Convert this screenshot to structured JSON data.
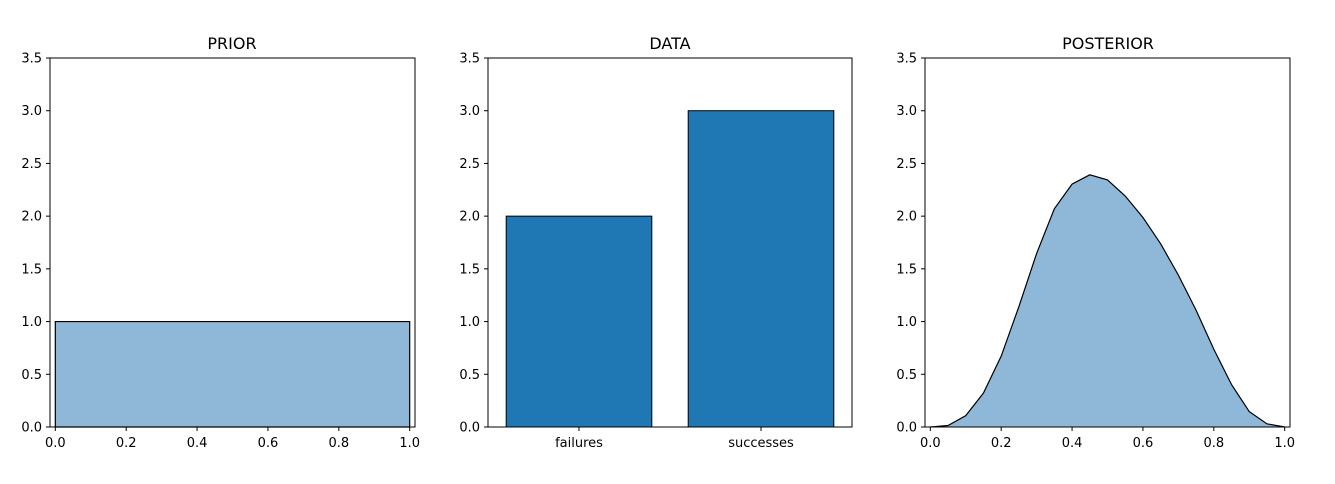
{
  "chart_data": [
    {
      "type": "area",
      "title": "PRIOR",
      "xlim": [
        -0.015,
        1.015
      ],
      "ylim": [
        0,
        3.5
      ],
      "xticks": [
        "0.0",
        "0.2",
        "0.4",
        "0.6",
        "0.8",
        "1.0"
      ],
      "yticks": [
        "0.0",
        "0.5",
        "1.0",
        "1.5",
        "2.0",
        "2.5",
        "3.0",
        "3.5"
      ],
      "x": [
        0,
        1
      ],
      "y": [
        1,
        1
      ],
      "fill_color": "#8fb8d8",
      "edge_color": "#000000",
      "grid": false
    },
    {
      "type": "bar",
      "title": "DATA",
      "categories": [
        "failures",
        "successes"
      ],
      "values": [
        2,
        3
      ],
      "ylim": [
        0,
        3.5
      ],
      "yticks": [
        "0.0",
        "0.5",
        "1.0",
        "1.5",
        "2.0",
        "2.5",
        "3.0",
        "3.5"
      ],
      "bar_color": "#1f77b4",
      "edge_color": "#000000",
      "grid": false
    },
    {
      "type": "area",
      "title": "POSTERIOR",
      "xlim": [
        -0.015,
        1.015
      ],
      "ylim": [
        0,
        3.5
      ],
      "xticks": [
        "0.0",
        "0.2",
        "0.4",
        "0.6",
        "0.8",
        "1.0"
      ],
      "yticks": [
        "0.0",
        "0.5",
        "1.0",
        "1.5",
        "2.0",
        "2.5",
        "3.0",
        "3.5"
      ],
      "x": [
        0.0,
        0.05,
        0.1,
        0.15,
        0.2,
        0.25,
        0.3,
        0.35,
        0.4,
        0.45,
        0.5,
        0.55,
        0.6,
        0.65,
        0.7,
        0.75,
        0.8,
        0.85,
        0.9,
        0.95,
        1.0
      ],
      "y": [
        0.0,
        0.0143,
        0.108,
        0.3225,
        0.672,
        1.1426,
        1.6464,
        2.07,
        2.304,
        2.3921,
        2.3438,
        2.1906,
        1.9872,
        1.7374,
        1.4406,
        1.1074,
        0.7373,
        0.4024,
        0.1458,
        0.0301,
        0.0
      ],
      "fill_color": "#8fb8d8",
      "edge_color": "#000000",
      "grid": false
    }
  ]
}
